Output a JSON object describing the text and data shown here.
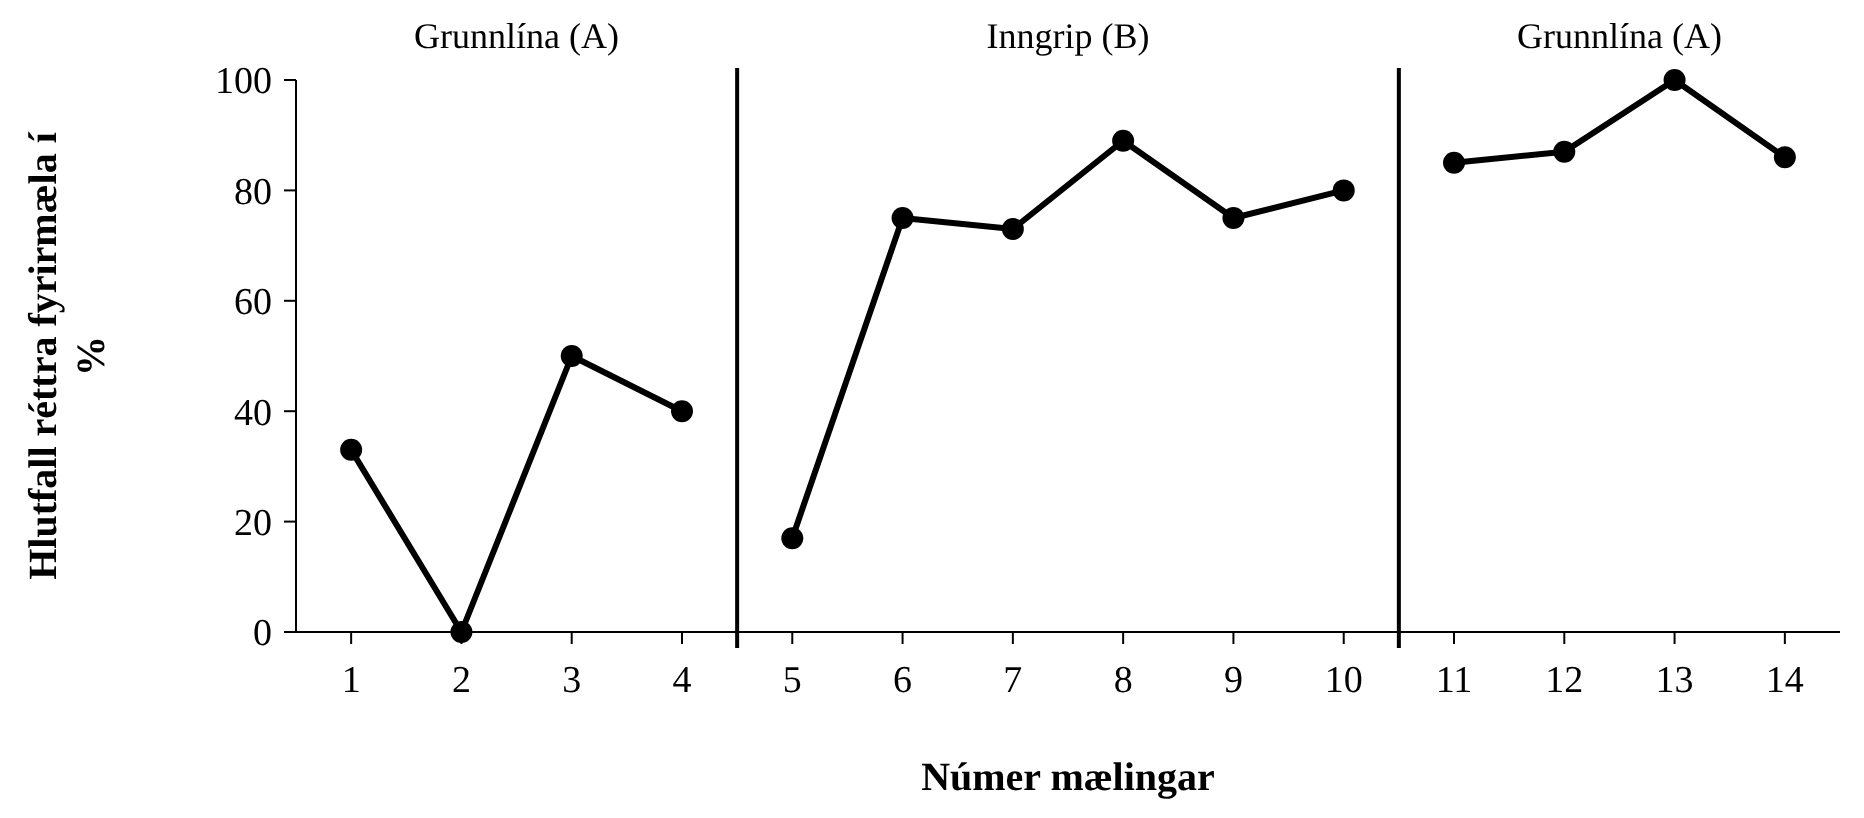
{
  "chart_data": {
    "type": "line",
    "xlabel": "Númer mælingar",
    "ylabel": "Hlutfall réttra fyrirmæla í %",
    "xlim": [
      0.5,
      14.5
    ],
    "xticks": [
      1,
      2,
      3,
      4,
      5,
      6,
      7,
      8,
      9,
      10,
      11,
      12,
      13,
      14
    ],
    "ylim": [
      0,
      100
    ],
    "yticks": [
      0,
      20,
      40,
      60,
      80,
      100
    ],
    "grid": false,
    "marker": "circle",
    "line_style": "solid",
    "series": [
      {
        "color": "#000000",
        "x": [
          1,
          2,
          3,
          4
        ],
        "values": [
          33,
          0,
          50,
          40
        ]
      },
      {
        "color": "#000000",
        "x": [
          5,
          6,
          7,
          8,
          9,
          10
        ],
        "values": [
          17,
          75,
          73,
          89,
          75,
          80
        ]
      },
      {
        "color": "#000000",
        "x": [
          11,
          12,
          13,
          14
        ],
        "values": [
          85,
          87,
          100,
          86
        ]
      }
    ],
    "ref_lines": [
      {
        "axis": "x",
        "value": 4.5,
        "color": "#000000"
      },
      {
        "axis": "x",
        "value": 10.5,
        "color": "#000000"
      }
    ],
    "annotations": [
      "Grunnlína (A)",
      "Inngrip (B)",
      "Grunnlína (A)"
    ]
  }
}
